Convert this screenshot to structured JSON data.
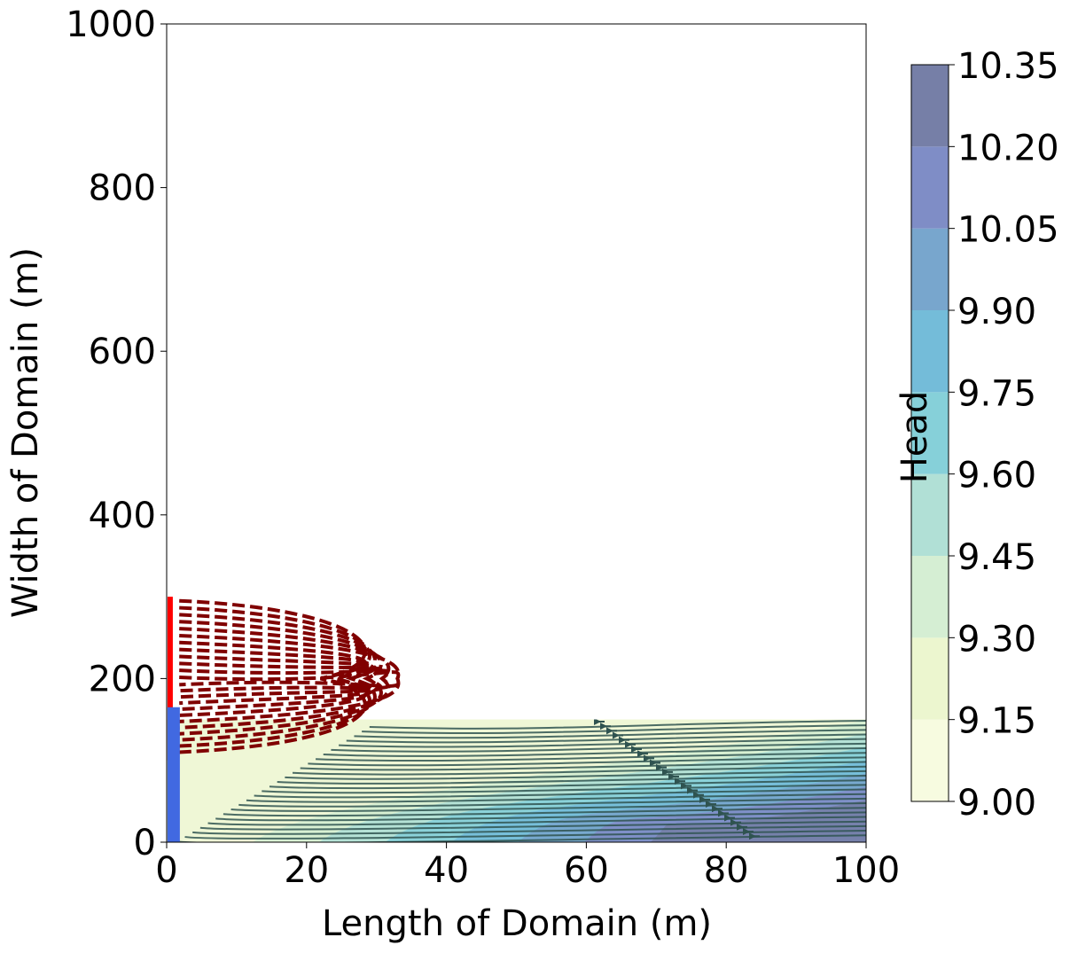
{
  "chart_data": {
    "type": "contour",
    "xlabel": "Length of Domain (m)",
    "ylabel": "Width of Domain (m)",
    "xlim": [
      0,
      100
    ],
    "ylim": [
      0,
      1000
    ],
    "xticks": [
      "0",
      "20",
      "40",
      "60",
      "80",
      "100"
    ],
    "yticks": [
      "0",
      "200",
      "400",
      "600",
      "800",
      "1000"
    ],
    "colorbar": {
      "label": "Head",
      "ticks": [
        "9.00",
        "9.15",
        "9.30",
        "9.45",
        "9.60",
        "9.75",
        "9.90",
        "10.05",
        "10.20",
        "10.35"
      ],
      "levels": [
        9.0,
        9.15,
        9.3,
        9.45,
        9.6,
        9.75,
        9.9,
        10.05,
        10.2,
        10.35
      ],
      "colors": [
        "#f7fbe0",
        "#ecf6cf",
        "#d5eed3",
        "#b1e0d6",
        "#86d0d9",
        "#74bcd9",
        "#78a6cd",
        "#7f8dc6",
        "#767fa7"
      ]
    },
    "head_region": {
      "x_range": [
        0,
        100
      ],
      "y_range": [
        0,
        150
      ]
    },
    "features": [
      {
        "name": "red boundary",
        "color": "#ff0000",
        "x": 0.5,
        "y_range": [
          100,
          300
        ]
      },
      {
        "name": "blue boundary",
        "color": "#4169e1",
        "x": 1,
        "y_range": [
          0,
          165
        ]
      }
    ],
    "dashed_lines_color": "#800000",
    "streamline_color": "#2f5350"
  }
}
